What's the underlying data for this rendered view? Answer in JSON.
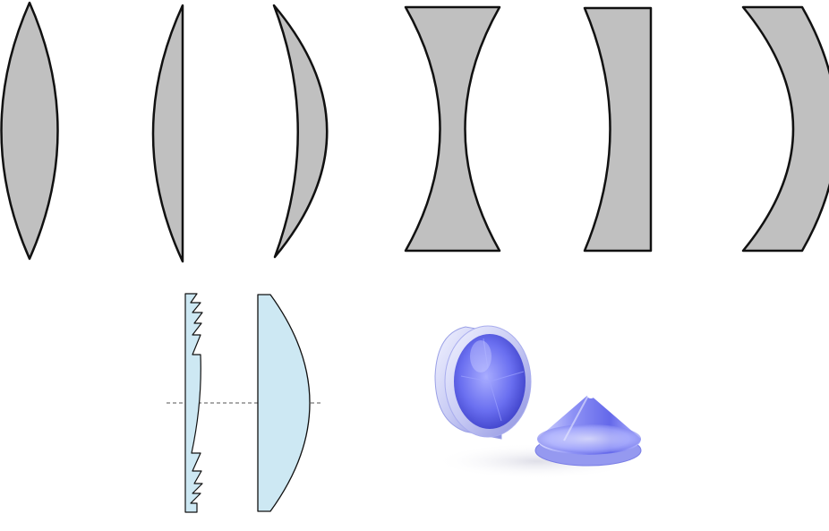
{
  "colors": {
    "background": "#ffffff",
    "lens_fill": "#c0c0c0",
    "lens_stroke": "#111111",
    "fresnel_fill": "#cde8f3",
    "axis_line": "#555555",
    "axicon_blue": "#5a5de0",
    "axicon_light": "#c9ccff"
  },
  "lenses": [
    {
      "name": "biconvex-lens-shape",
      "type": "biconvex"
    },
    {
      "name": "plano-convex-lens-shape",
      "type": "plano-convex"
    },
    {
      "name": "positive-meniscus-lens-shape",
      "type": "positive-meniscus"
    },
    {
      "name": "biconcave-lens-shape",
      "type": "biconcave"
    },
    {
      "name": "plano-concave-lens-shape",
      "type": "plano-concave"
    },
    {
      "name": "negative-meniscus-lens-shape",
      "type": "negative-meniscus"
    }
  ],
  "fresnel_comparison": {
    "fresnel_lens": "fresnel-lens-profile",
    "conventional_lens": "plano-convex-lens-profile",
    "optical_axis": "optical-axis-dashed"
  },
  "axicon_photo": {
    "items": [
      "axicon-in-mount",
      "axicon-cone"
    ]
  }
}
